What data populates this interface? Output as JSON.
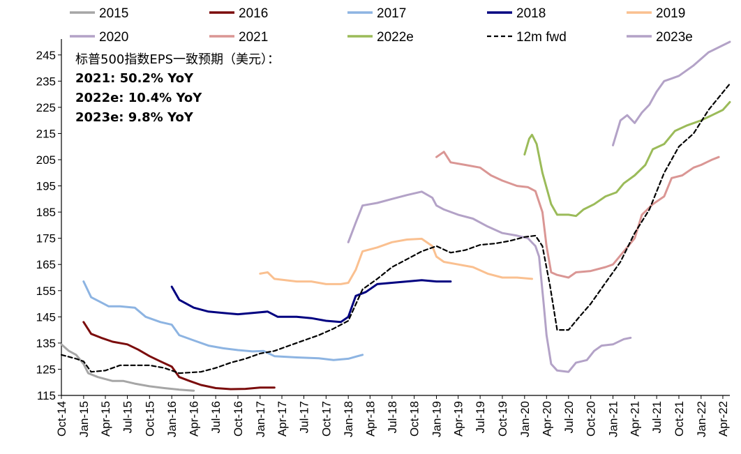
{
  "chart_data": {
    "type": "line",
    "title": "",
    "xlabel": "",
    "ylabel": "",
    "ylim": [
      115,
      250
    ],
    "y_ticks": [
      115,
      125,
      135,
      145,
      155,
      165,
      175,
      185,
      195,
      205,
      215,
      225,
      235,
      245
    ],
    "x_ticks": [
      "Oct-14",
      "Jan-15",
      "Apr-15",
      "Jul-15",
      "Oct-15",
      "Jan-16",
      "Apr-16",
      "Jul-16",
      "Oct-16",
      "Jan-17",
      "Apr-17",
      "Jul-17",
      "Oct-17",
      "Jan-18",
      "Apr-18",
      "Jul-18",
      "Oct-18",
      "Jan-19",
      "Apr-19",
      "Jul-19",
      "Oct-19",
      "Jan-20",
      "Apr-20",
      "Jul-20",
      "Oct-20",
      "Jan-21",
      "Apr-21",
      "Jul-21",
      "Oct-21",
      "Jan-22",
      "Apr-22"
    ],
    "grid": false,
    "legend_position": "top",
    "annotations": [
      "标普500指数EPS一致预期（美元）：",
      "2021: 50.2% YoY",
      "2022e: 10.4% YoY",
      "2023e: 9.8% YoY"
    ],
    "series": [
      {
        "name": "2015",
        "color": "#a6a6a6",
        "dash": false,
        "points": [
          [
            "2014-10-01",
            134.5
          ],
          [
            "2014-11-01",
            132
          ],
          [
            "2014-12-01",
            130.5
          ],
          [
            "2015-01-01",
            127
          ],
          [
            "2015-01-20",
            123.5
          ],
          [
            "2015-03-01",
            122
          ],
          [
            "2015-05-01",
            120.5
          ],
          [
            "2015-06-15",
            120.5
          ],
          [
            "2015-08-01",
            119.5
          ],
          [
            "2015-10-01",
            118.5
          ],
          [
            "2015-12-01",
            117.8
          ],
          [
            "2016-02-01",
            117.2
          ],
          [
            "2016-04-01",
            116.8
          ]
        ]
      },
      {
        "name": "2016",
        "color": "#7b0c0c",
        "dash": false,
        "points": [
          [
            "2015-01-01",
            143
          ],
          [
            "2015-02-01",
            138.5
          ],
          [
            "2015-03-15",
            137
          ],
          [
            "2015-05-01",
            135.5
          ],
          [
            "2015-07-01",
            134.5
          ],
          [
            "2015-08-15",
            132.5
          ],
          [
            "2015-10-01",
            130
          ],
          [
            "2015-11-15",
            128
          ],
          [
            "2016-01-01",
            126
          ],
          [
            "2016-02-01",
            122
          ],
          [
            "2016-03-15",
            120.5
          ],
          [
            "2016-05-01",
            119
          ],
          [
            "2016-07-01",
            117.8
          ],
          [
            "2016-09-01",
            117.4
          ],
          [
            "2016-11-01",
            117.5
          ],
          [
            "2017-01-01",
            118
          ],
          [
            "2017-03-01",
            118
          ]
        ]
      },
      {
        "name": "2017",
        "color": "#8db4e2",
        "dash": false,
        "points": [
          [
            "2015-01-01",
            158.5
          ],
          [
            "2015-02-01",
            152.5
          ],
          [
            "2015-03-15",
            150.5
          ],
          [
            "2015-04-15",
            149
          ],
          [
            "2015-06-01",
            149
          ],
          [
            "2015-08-01",
            148.5
          ],
          [
            "2015-09-15",
            145
          ],
          [
            "2015-11-15",
            143
          ],
          [
            "2016-01-01",
            142
          ],
          [
            "2016-02-01",
            138
          ],
          [
            "2016-04-01",
            136
          ],
          [
            "2016-06-01",
            134
          ],
          [
            "2016-08-01",
            133
          ],
          [
            "2016-10-01",
            132.3
          ],
          [
            "2016-12-01",
            131.8
          ],
          [
            "2017-01-15",
            132
          ],
          [
            "2017-03-01",
            130
          ],
          [
            "2017-06-01",
            129.5
          ],
          [
            "2017-09-01",
            129.2
          ],
          [
            "2017-11-01",
            128.5
          ],
          [
            "2018-01-01",
            129
          ],
          [
            "2018-03-01",
            130.5
          ]
        ]
      },
      {
        "name": "2018",
        "color": "#000080",
        "dash": false,
        "points": [
          [
            "2016-01-01",
            156.5
          ],
          [
            "2016-02-01",
            151.5
          ],
          [
            "2016-04-01",
            148.5
          ],
          [
            "2016-06-01",
            147
          ],
          [
            "2016-08-01",
            146.5
          ],
          [
            "2016-10-01",
            146
          ],
          [
            "2016-12-01",
            146.5
          ],
          [
            "2017-02-01",
            147
          ],
          [
            "2017-03-15",
            145
          ],
          [
            "2017-06-01",
            145
          ],
          [
            "2017-08-01",
            144.5
          ],
          [
            "2017-10-01",
            143.5
          ],
          [
            "2017-12-01",
            143
          ],
          [
            "2018-01-01",
            145
          ],
          [
            "2018-02-01",
            153
          ],
          [
            "2018-03-15",
            154.5
          ],
          [
            "2018-05-01",
            157.5
          ],
          [
            "2018-07-01",
            158
          ],
          [
            "2018-09-01",
            158.5
          ],
          [
            "2018-11-01",
            159
          ],
          [
            "2019-01-01",
            158.5
          ],
          [
            "2019-03-01",
            158.5
          ]
        ]
      },
      {
        "name": "2019",
        "color": "#fac090",
        "dash": false,
        "points": [
          [
            "2017-01-01",
            161.5
          ],
          [
            "2017-02-01",
            162
          ],
          [
            "2017-03-01",
            159.5
          ],
          [
            "2017-06-01",
            158.5
          ],
          [
            "2017-08-01",
            158.5
          ],
          [
            "2017-10-01",
            157.5
          ],
          [
            "2017-12-01",
            157.5
          ],
          [
            "2018-01-01",
            158
          ],
          [
            "2018-02-01",
            163
          ],
          [
            "2018-03-01",
            170
          ],
          [
            "2018-05-01",
            171.5
          ],
          [
            "2018-07-01",
            173.5
          ],
          [
            "2018-09-01",
            174.5
          ],
          [
            "2018-11-01",
            174.8
          ],
          [
            "2018-12-15",
            172
          ],
          [
            "2019-01-01",
            168
          ],
          [
            "2019-02-01",
            166
          ],
          [
            "2019-04-01",
            165
          ],
          [
            "2019-06-01",
            164
          ],
          [
            "2019-08-01",
            161.5
          ],
          [
            "2019-10-01",
            160
          ],
          [
            "2019-12-01",
            160
          ],
          [
            "2020-02-01",
            159.5
          ]
        ]
      },
      {
        "name": "2020",
        "color": "#b3a2c7",
        "dash": false,
        "points": [
          [
            "2018-01-01",
            173.5
          ],
          [
            "2018-02-01",
            181
          ],
          [
            "2018-03-01",
            187.5
          ],
          [
            "2018-05-01",
            188.5
          ],
          [
            "2018-07-01",
            190
          ],
          [
            "2018-09-01",
            191.5
          ],
          [
            "2018-11-01",
            192.8
          ],
          [
            "2018-12-15",
            190.5
          ],
          [
            "2019-01-01",
            187.5
          ],
          [
            "2019-02-01",
            186
          ],
          [
            "2019-04-01",
            184
          ],
          [
            "2019-06-01",
            182.5
          ],
          [
            "2019-08-01",
            179.5
          ],
          [
            "2019-10-01",
            177
          ],
          [
            "2019-12-01",
            176
          ],
          [
            "2020-01-15",
            175
          ],
          [
            "2020-02-15",
            172
          ],
          [
            "2020-03-01",
            168
          ],
          [
            "2020-03-20",
            150
          ],
          [
            "2020-04-01",
            138
          ],
          [
            "2020-04-20",
            127
          ],
          [
            "2020-05-15",
            124.5
          ],
          [
            "2020-07-01",
            124
          ],
          [
            "2020-08-01",
            127.5
          ],
          [
            "2020-09-15",
            128.5
          ],
          [
            "2020-10-15",
            132
          ],
          [
            "2020-11-15",
            134
          ],
          [
            "2021-01-01",
            134.5
          ],
          [
            "2021-02-15",
            136.5
          ],
          [
            "2021-03-15",
            137
          ]
        ]
      },
      {
        "name": "2021",
        "color": "#da9694",
        "dash": false,
        "points": [
          [
            "2019-01-01",
            206
          ],
          [
            "2019-02-01",
            208
          ],
          [
            "2019-03-01",
            204
          ],
          [
            "2019-05-01",
            203
          ],
          [
            "2019-07-01",
            202
          ],
          [
            "2019-08-15",
            199
          ],
          [
            "2019-10-01",
            197
          ],
          [
            "2019-12-01",
            195
          ],
          [
            "2020-01-15",
            194.5
          ],
          [
            "2020-02-15",
            193
          ],
          [
            "2020-03-15",
            185
          ],
          [
            "2020-04-01",
            172
          ],
          [
            "2020-04-20",
            162
          ],
          [
            "2020-05-15",
            161
          ],
          [
            "2020-07-01",
            160
          ],
          [
            "2020-08-01",
            162
          ],
          [
            "2020-10-01",
            162.5
          ],
          [
            "2020-12-01",
            164
          ],
          [
            "2021-01-01",
            165
          ],
          [
            "2021-02-15",
            170
          ],
          [
            "2021-04-01",
            175
          ],
          [
            "2021-05-01",
            184
          ],
          [
            "2021-06-15",
            188
          ],
          [
            "2021-08-01",
            191
          ],
          [
            "2021-09-01",
            198
          ],
          [
            "2021-10-15",
            199
          ],
          [
            "2021-12-01",
            202
          ],
          [
            "2022-01-01",
            203
          ],
          [
            "2022-02-15",
            205
          ],
          [
            "2022-03-15",
            206
          ]
        ]
      },
      {
        "name": "2022e",
        "color": "#9bbb59",
        "dash": false,
        "points": [
          [
            "2020-01-01",
            207
          ],
          [
            "2020-01-20",
            213
          ],
          [
            "2020-02-01",
            214.5
          ],
          [
            "2020-02-20",
            211
          ],
          [
            "2020-03-15",
            200
          ],
          [
            "2020-04-20",
            188
          ],
          [
            "2020-05-15",
            184
          ],
          [
            "2020-07-01",
            184
          ],
          [
            "2020-08-01",
            183.5
          ],
          [
            "2020-09-01",
            186
          ],
          [
            "2020-10-15",
            188
          ],
          [
            "2020-12-01",
            191
          ],
          [
            "2021-01-15",
            192.5
          ],
          [
            "2021-02-15",
            196
          ],
          [
            "2021-04-01",
            199
          ],
          [
            "2021-05-15",
            203
          ],
          [
            "2021-06-15",
            209
          ],
          [
            "2021-08-01",
            211
          ],
          [
            "2021-09-15",
            216
          ],
          [
            "2021-11-01",
            218
          ],
          [
            "2022-01-01",
            220
          ],
          [
            "2022-02-15",
            222
          ],
          [
            "2022-04-01",
            224
          ],
          [
            "2022-04-30",
            227
          ]
        ]
      },
      {
        "name": "12m fwd",
        "color": "#000000",
        "dash": true,
        "points": [
          [
            "2014-10-01",
            130.5
          ],
          [
            "2014-12-01",
            129
          ],
          [
            "2015-01-01",
            128
          ],
          [
            "2015-02-01",
            124
          ],
          [
            "2015-04-01",
            124.5
          ],
          [
            "2015-06-01",
            126.5
          ],
          [
            "2015-08-01",
            126.5
          ],
          [
            "2015-10-01",
            126.5
          ],
          [
            "2015-12-01",
            125.5
          ],
          [
            "2016-02-01",
            123.5
          ],
          [
            "2016-05-01",
            124
          ],
          [
            "2016-07-01",
            125.5
          ],
          [
            "2016-09-01",
            127.5
          ],
          [
            "2016-11-01",
            129
          ],
          [
            "2017-01-01",
            131
          ],
          [
            "2017-03-01",
            132
          ],
          [
            "2017-05-01",
            134
          ],
          [
            "2017-07-01",
            136
          ],
          [
            "2017-09-01",
            138
          ],
          [
            "2017-11-01",
            140.5
          ],
          [
            "2018-01-01",
            143.5
          ],
          [
            "2018-03-01",
            155.5
          ],
          [
            "2018-05-01",
            159.5
          ],
          [
            "2018-07-01",
            164
          ],
          [
            "2018-09-01",
            167
          ],
          [
            "2018-11-01",
            170
          ],
          [
            "2019-01-01",
            172
          ],
          [
            "2019-03-01",
            169.5
          ],
          [
            "2019-05-01",
            170.5
          ],
          [
            "2019-07-01",
            172.5
          ],
          [
            "2019-09-01",
            173
          ],
          [
            "2019-11-01",
            174
          ],
          [
            "2020-01-01",
            175.5
          ],
          [
            "2020-02-15",
            176
          ],
          [
            "2020-03-15",
            172
          ],
          [
            "2020-04-15",
            157
          ],
          [
            "2020-05-15",
            140
          ],
          [
            "2020-07-01",
            140
          ],
          [
            "2020-08-15",
            145
          ],
          [
            "2020-10-01",
            150
          ],
          [
            "2020-12-01",
            158
          ],
          [
            "2021-02-01",
            166
          ],
          [
            "2021-04-01",
            177
          ],
          [
            "2021-06-01",
            186
          ],
          [
            "2021-08-01",
            200
          ],
          [
            "2021-10-01",
            210
          ],
          [
            "2021-12-01",
            215
          ],
          [
            "2022-02-01",
            224
          ],
          [
            "2022-04-30",
            234
          ]
        ]
      },
      {
        "name": "2023e",
        "color": "#b3a2c7",
        "dash": false,
        "points": [
          [
            "2021-01-01",
            210.5
          ],
          [
            "2021-02-01",
            220
          ],
          [
            "2021-03-01",
            222
          ],
          [
            "2021-04-01",
            219
          ],
          [
            "2021-05-01",
            223
          ],
          [
            "2021-06-01",
            226
          ],
          [
            "2021-07-01",
            231
          ],
          [
            "2021-08-01",
            235
          ],
          [
            "2021-09-01",
            236
          ],
          [
            "2021-10-01",
            237
          ],
          [
            "2021-12-01",
            241
          ],
          [
            "2022-02-01",
            246
          ],
          [
            "2022-04-30",
            250
          ]
        ]
      }
    ]
  }
}
